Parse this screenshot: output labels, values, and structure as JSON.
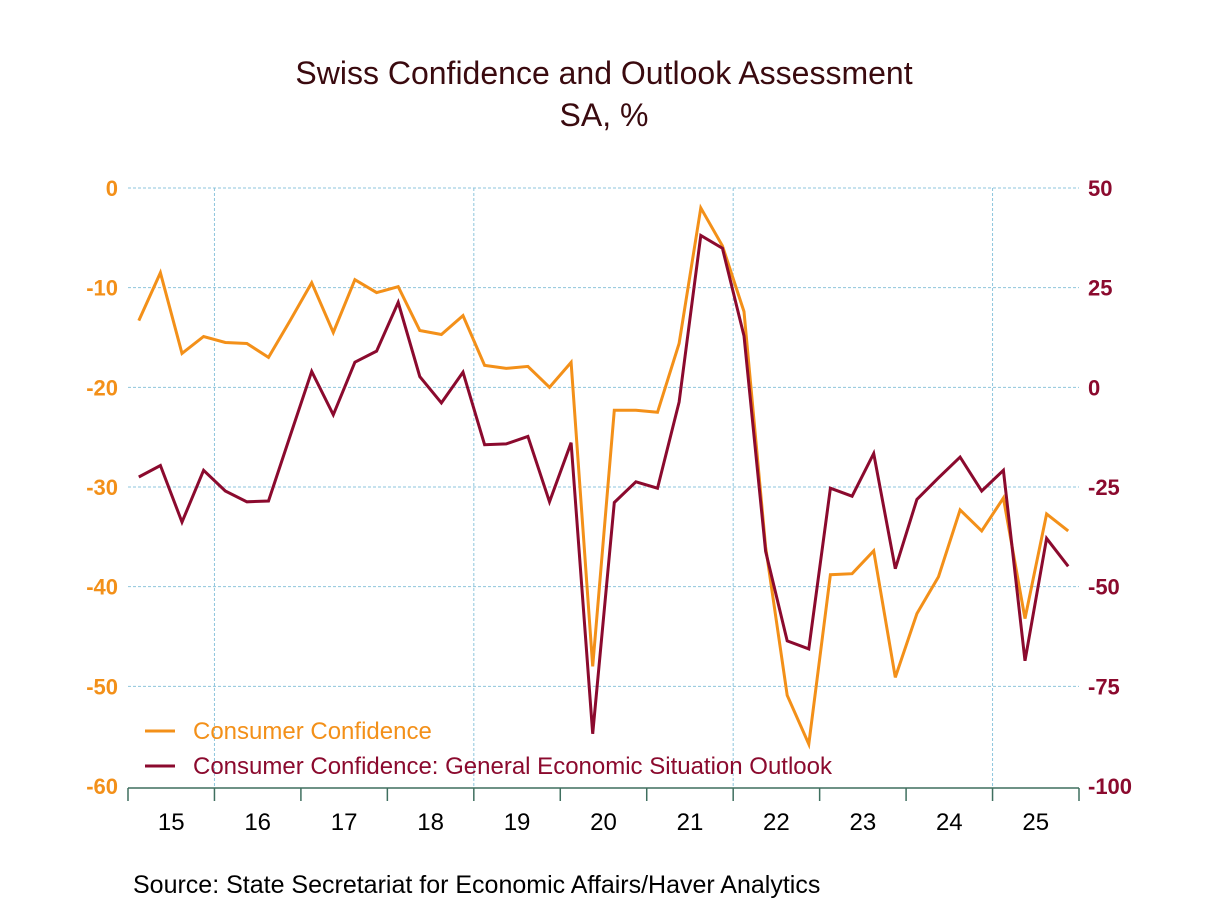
{
  "chart_data": {
    "type": "line",
    "title": "Swiss Confidence and Outlook Assessment",
    "subtitle": "SA, %",
    "source": "Source:  State Secretariat for Economic Affairs/Haver Analytics",
    "frequency": "quarterly",
    "x_start": "2015-Q1",
    "x_tick_labels": [
      "15",
      "16",
      "17",
      "18",
      "19",
      "20",
      "21",
      "22",
      "23",
      "24",
      "25"
    ],
    "left_axis": {
      "ylim": [
        -60,
        0
      ],
      "ticks": [
        "0",
        "-10",
        "-20",
        "-30",
        "-40",
        "-50",
        "-60"
      ],
      "color": "#f39019"
    },
    "right_axis": {
      "ylim": [
        -100,
        50
      ],
      "ticks": [
        "50",
        "25",
        "0",
        "-25",
        "-50",
        "-75",
        "-100"
      ],
      "color": "#8b0a2e"
    },
    "grid": true,
    "legend_position": "bottom-left",
    "series": [
      {
        "name": "Consumer Confidence",
        "axis": "left",
        "color": "#f39019",
        "values": [
          -13.3,
          -8.5,
          -16.6,
          -14.9,
          -15.5,
          -15.6,
          -17.0,
          -13.3,
          -9.5,
          -14.5,
          -9.2,
          -10.5,
          -9.9,
          -14.3,
          -14.7,
          -12.8,
          -17.8,
          -18.1,
          -17.9,
          -20.0,
          -17.5,
          -48.0,
          -22.3,
          -22.3,
          -22.5,
          -15.6,
          -2.0,
          -5.8,
          -12.4,
          -36.0,
          -50.9,
          -55.8,
          -38.8,
          -38.7,
          -36.4,
          -49.1,
          -42.7,
          -39.0,
          -32.3,
          -34.4,
          -31.1,
          -43.2,
          -32.7,
          -34.4
        ]
      },
      {
        "name": "Consumer Confidence: General Economic Situation Outlook",
        "axis": "right",
        "color": "#8b0a2e",
        "values": [
          -22.5,
          -19.6,
          -33.8,
          -20.8,
          -26.0,
          -28.7,
          -28.5,
          -12.2,
          4.0,
          -6.9,
          6.3,
          9.1,
          21.3,
          2.7,
          -3.9,
          3.8,
          -14.4,
          -14.2,
          -12.3,
          -28.7,
          -13.9,
          -86.9,
          -28.9,
          -23.7,
          -25.3,
          -3.7,
          38.1,
          34.9,
          12.9,
          -41.1,
          -63.6,
          -65.6,
          -25.3,
          -27.3,
          -16.6,
          -45.5,
          -28.1,
          -22.7,
          -17.5,
          -26.0,
          -20.8,
          -68.6,
          -37.9,
          -44.9
        ]
      }
    ]
  }
}
